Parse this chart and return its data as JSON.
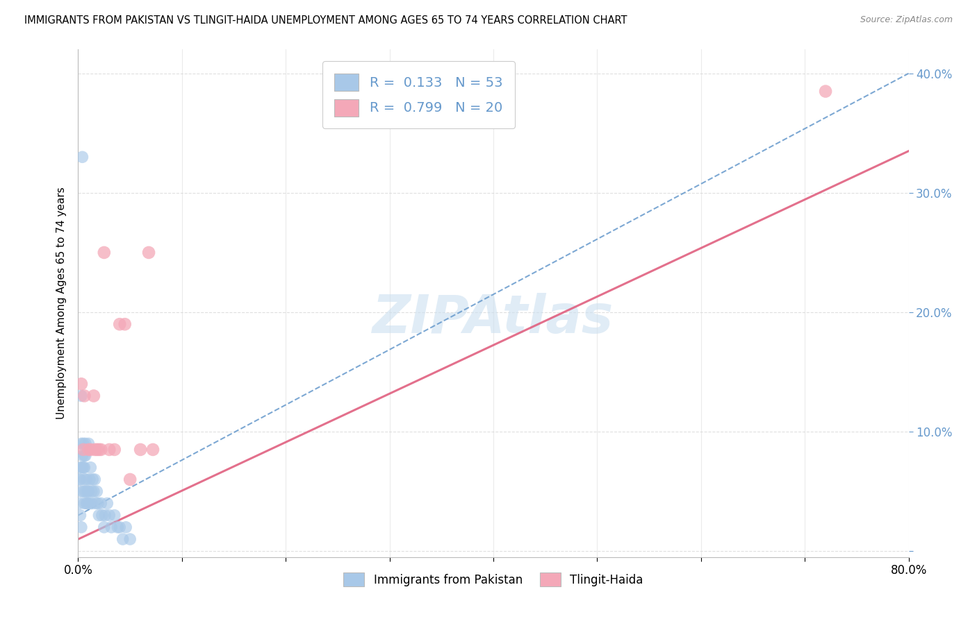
{
  "title": "IMMIGRANTS FROM PAKISTAN VS TLINGIT-HAIDA UNEMPLOYMENT AMONG AGES 65 TO 74 YEARS CORRELATION CHART",
  "source": "Source: ZipAtlas.com",
  "ylabel": "Unemployment Among Ages 65 to 74 years",
  "watermark": "ZIPAtlas",
  "r_pakistan": 0.133,
  "n_pakistan": 53,
  "r_tlingit": 0.799,
  "n_tlingit": 20,
  "xlim": [
    0.0,
    0.8
  ],
  "ylim": [
    -0.005,
    0.42
  ],
  "xticks": [
    0.0,
    0.1,
    0.2,
    0.3,
    0.4,
    0.5,
    0.6,
    0.7,
    0.8
  ],
  "yticks": [
    0.0,
    0.1,
    0.2,
    0.3,
    0.4
  ],
  "pakistan_line_x0": 0.0,
  "pakistan_line_y0": 0.03,
  "pakistan_line_x1": 0.8,
  "pakistan_line_y1": 0.4,
  "tlingit_line_x0": 0.0,
  "tlingit_line_y0": 0.01,
  "tlingit_line_x1": 0.8,
  "tlingit_line_y1": 0.335,
  "color_pakistan": "#a8c8e8",
  "color_tlingit": "#f4a8b8",
  "color_pakistan_line": "#6699cc",
  "color_tlingit_line": "#e06080",
  "background_color": "#ffffff",
  "grid_color": "#d8d8d8",
  "watermark_color": "#cce0f0",
  "pakistan_scatter_x": [
    0.004,
    0.003,
    0.002,
    0.005,
    0.006,
    0.003,
    0.004,
    0.007,
    0.008,
    0.005,
    0.006,
    0.004,
    0.003,
    0.007,
    0.005,
    0.006,
    0.009,
    0.008,
    0.006,
    0.007,
    0.01,
    0.009,
    0.011,
    0.01,
    0.012,
    0.011,
    0.013,
    0.014,
    0.013,
    0.015,
    0.016,
    0.017,
    0.018,
    0.019,
    0.02,
    0.022,
    0.023,
    0.025,
    0.026,
    0.028,
    0.03,
    0.032,
    0.035,
    0.038,
    0.04,
    0.043,
    0.046,
    0.05,
    0.002,
    0.003,
    0.001,
    0.001,
    0.002
  ],
  "pakistan_scatter_y": [
    0.33,
    0.09,
    0.06,
    0.05,
    0.08,
    0.13,
    0.07,
    0.05,
    0.04,
    0.09,
    0.06,
    0.08,
    0.05,
    0.09,
    0.07,
    0.04,
    0.05,
    0.06,
    0.07,
    0.08,
    0.09,
    0.04,
    0.06,
    0.05,
    0.07,
    0.04,
    0.05,
    0.06,
    0.04,
    0.05,
    0.06,
    0.04,
    0.05,
    0.04,
    0.03,
    0.04,
    0.03,
    0.02,
    0.03,
    0.04,
    0.03,
    0.02,
    0.03,
    0.02,
    0.02,
    0.01,
    0.02,
    0.01,
    0.03,
    0.02,
    0.04,
    0.06,
    0.07
  ],
  "tlingit_scatter_x": [
    0.003,
    0.006,
    0.01,
    0.012,
    0.015,
    0.018,
    0.02,
    0.025,
    0.035,
    0.04,
    0.05,
    0.06,
    0.068,
    0.072,
    0.022,
    0.03,
    0.016,
    0.045,
    0.72,
    0.005
  ],
  "tlingit_scatter_y": [
    0.14,
    0.13,
    0.085,
    0.085,
    0.13,
    0.085,
    0.085,
    0.25,
    0.085,
    0.19,
    0.06,
    0.085,
    0.25,
    0.085,
    0.085,
    0.085,
    0.085,
    0.19,
    0.385,
    0.085
  ]
}
